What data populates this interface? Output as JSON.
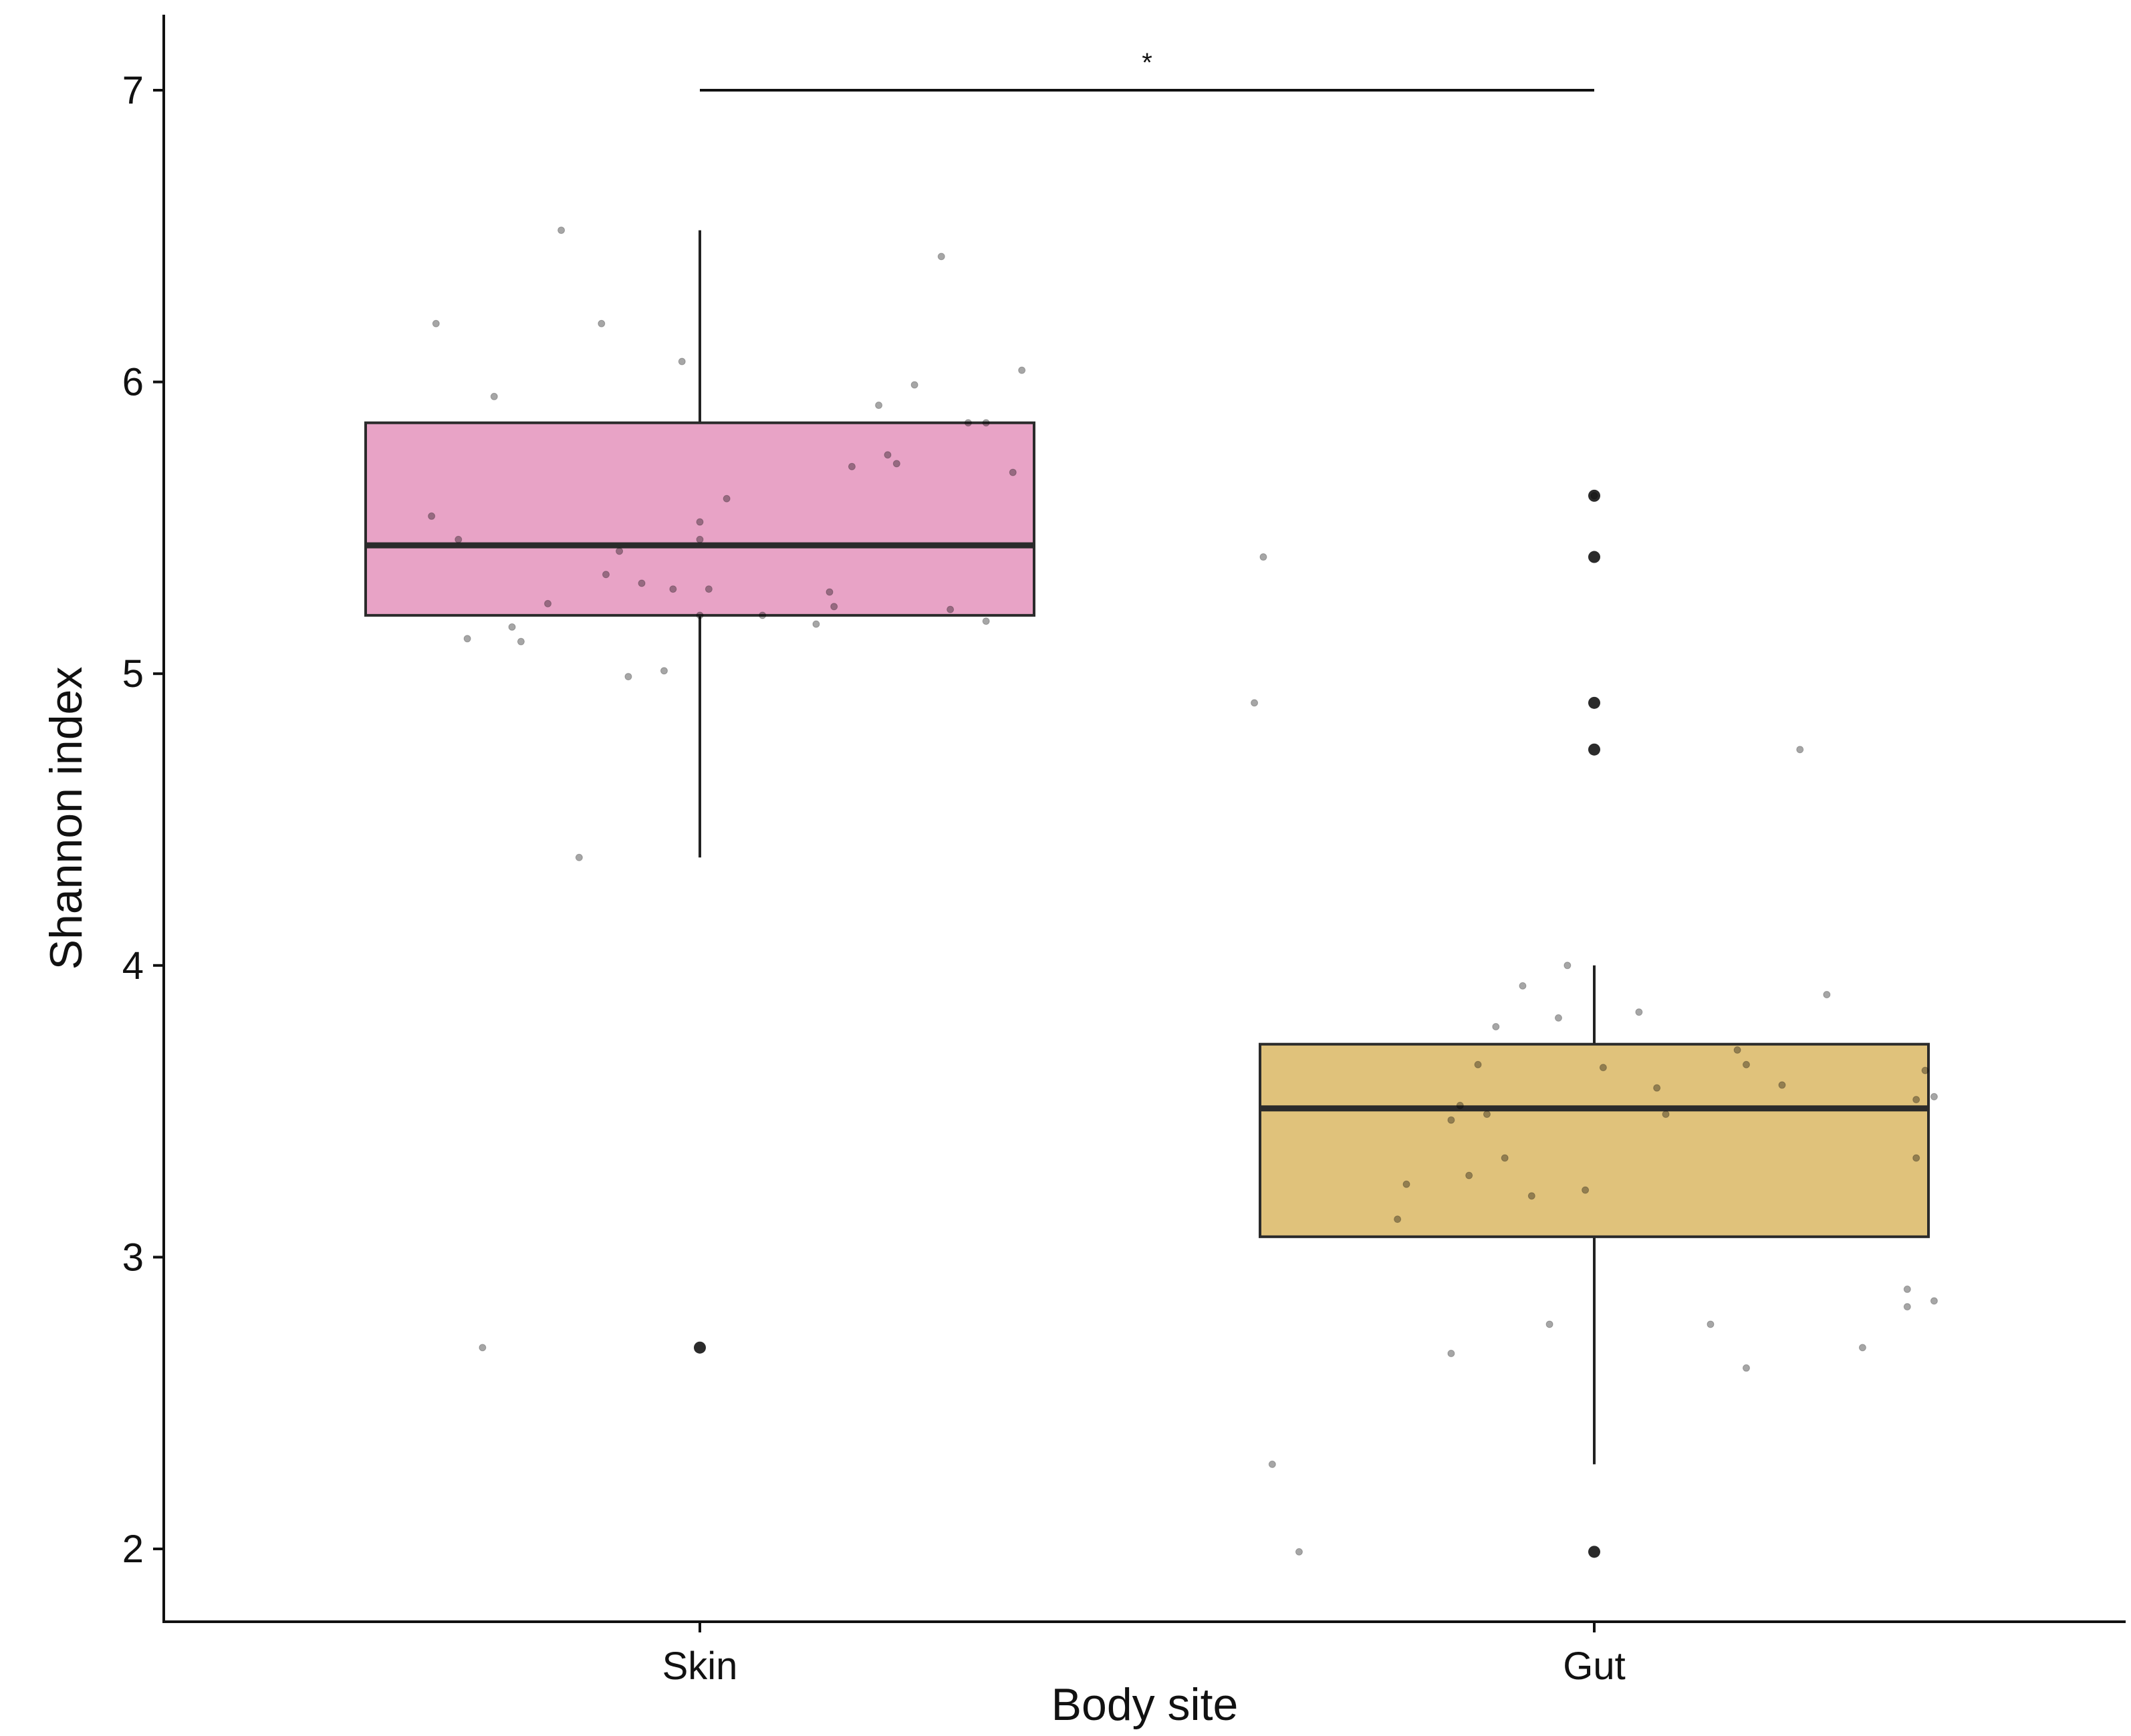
{
  "chart_data": {
    "type": "box",
    "xlabel": "Body site",
    "ylabel": "Shannon index",
    "ylim": [
      1.75,
      7.25
    ],
    "yticks": [
      2,
      3,
      4,
      5,
      6,
      7
    ],
    "grid": false,
    "legend": "none",
    "categories": [
      "Skin",
      "Gut"
    ],
    "boxes": [
      {
        "category": "Skin",
        "color": "#e8a3c6",
        "whisker_low": 4.37,
        "q1": 5.2,
        "median": 5.44,
        "q3": 5.86,
        "whisker_high": 6.52,
        "outliers": [
          2.69
        ],
        "points": [
          {
            "x": 0.7,
            "y": 5.54
          },
          {
            "x": 0.705,
            "y": 6.2
          },
          {
            "x": 0.73,
            "y": 5.46
          },
          {
            "x": 0.74,
            "y": 5.12
          },
          {
            "x": 0.757,
            "y": 2.69
          },
          {
            "x": 0.77,
            "y": 5.95
          },
          {
            "x": 0.79,
            "y": 5.16
          },
          {
            "x": 0.8,
            "y": 5.11
          },
          {
            "x": 0.83,
            "y": 5.24
          },
          {
            "x": 0.845,
            "y": 6.52
          },
          {
            "x": 0.865,
            "y": 4.37
          },
          {
            "x": 0.89,
            "y": 6.2
          },
          {
            "x": 0.895,
            "y": 5.34
          },
          {
            "x": 0.91,
            "y": 5.42
          },
          {
            "x": 0.92,
            "y": 4.99
          },
          {
            "x": 0.935,
            "y": 5.31
          },
          {
            "x": 0.96,
            "y": 5.01
          },
          {
            "x": 0.97,
            "y": 5.29
          },
          {
            "x": 0.98,
            "y": 6.07
          },
          {
            "x": 1.0,
            "y": 5.46
          },
          {
            "x": 1.0,
            "y": 5.52
          },
          {
            "x": 1.0,
            "y": 5.2
          },
          {
            "x": 1.01,
            "y": 5.29
          },
          {
            "x": 1.03,
            "y": 5.6
          },
          {
            "x": 1.07,
            "y": 5.2
          },
          {
            "x": 1.13,
            "y": 5.17
          },
          {
            "x": 1.145,
            "y": 5.28
          },
          {
            "x": 1.15,
            "y": 5.23
          },
          {
            "x": 1.17,
            "y": 5.71
          },
          {
            "x": 1.2,
            "y": 5.92
          },
          {
            "x": 1.21,
            "y": 5.75
          },
          {
            "x": 1.22,
            "y": 5.72
          },
          {
            "x": 1.24,
            "y": 5.99
          },
          {
            "x": 1.27,
            "y": 6.43
          },
          {
            "x": 1.28,
            "y": 5.22
          },
          {
            "x": 1.3,
            "y": 5.86
          },
          {
            "x": 1.32,
            "y": 5.86
          },
          {
            "x": 1.32,
            "y": 5.18
          },
          {
            "x": 1.35,
            "y": 5.69
          },
          {
            "x": 1.36,
            "y": 6.04
          }
        ]
      },
      {
        "category": "Gut",
        "color": "#e0c27b",
        "whisker_low": 2.29,
        "q1": 3.07,
        "median": 3.51,
        "q3": 3.73,
        "whisker_high": 4.0,
        "outliers": [
          5.61,
          5.4,
          4.9,
          4.74,
          1.99
        ],
        "points": [
          {
            "x": 1.62,
            "y": 4.9
          },
          {
            "x": 1.63,
            "y": 5.4
          },
          {
            "x": 1.64,
            "y": 2.29
          },
          {
            "x": 1.67,
            "y": 1.99
          },
          {
            "x": 1.78,
            "y": 3.13
          },
          {
            "x": 1.79,
            "y": 3.25
          },
          {
            "x": 1.84,
            "y": 3.47
          },
          {
            "x": 1.84,
            "y": 2.67
          },
          {
            "x": 1.85,
            "y": 3.52
          },
          {
            "x": 1.86,
            "y": 3.28
          },
          {
            "x": 1.87,
            "y": 3.66
          },
          {
            "x": 1.88,
            "y": 3.49
          },
          {
            "x": 1.89,
            "y": 3.79
          },
          {
            "x": 1.9,
            "y": 3.34
          },
          {
            "x": 1.92,
            "y": 3.93
          },
          {
            "x": 1.93,
            "y": 3.21
          },
          {
            "x": 1.95,
            "y": 2.77
          },
          {
            "x": 1.96,
            "y": 3.82
          },
          {
            "x": 1.97,
            "y": 4.0
          },
          {
            "x": 1.99,
            "y": 3.23
          },
          {
            "x": 2.0,
            "y": 5.61
          },
          {
            "x": 2.01,
            "y": 3.65
          },
          {
            "x": 2.05,
            "y": 3.84
          },
          {
            "x": 2.07,
            "y": 3.58
          },
          {
            "x": 2.08,
            "y": 3.49
          },
          {
            "x": 2.13,
            "y": 2.77
          },
          {
            "x": 2.16,
            "y": 3.71
          },
          {
            "x": 2.17,
            "y": 3.66
          },
          {
            "x": 2.17,
            "y": 2.62
          },
          {
            "x": 2.21,
            "y": 3.59
          },
          {
            "x": 2.23,
            "y": 4.74
          },
          {
            "x": 2.26,
            "y": 3.9
          },
          {
            "x": 2.3,
            "y": 2.69
          },
          {
            "x": 2.35,
            "y": 2.83
          },
          {
            "x": 2.35,
            "y": 2.89
          },
          {
            "x": 2.36,
            "y": 3.34
          },
          {
            "x": 2.36,
            "y": 3.54
          },
          {
            "x": 2.37,
            "y": 3.64
          },
          {
            "x": 2.38,
            "y": 3.55
          },
          {
            "x": 2.38,
            "y": 2.85
          }
        ]
      }
    ],
    "annotations": [
      {
        "type": "significance-bracket",
        "from": "Skin",
        "to": "Gut",
        "y": 7.0,
        "label": "*"
      }
    ]
  }
}
